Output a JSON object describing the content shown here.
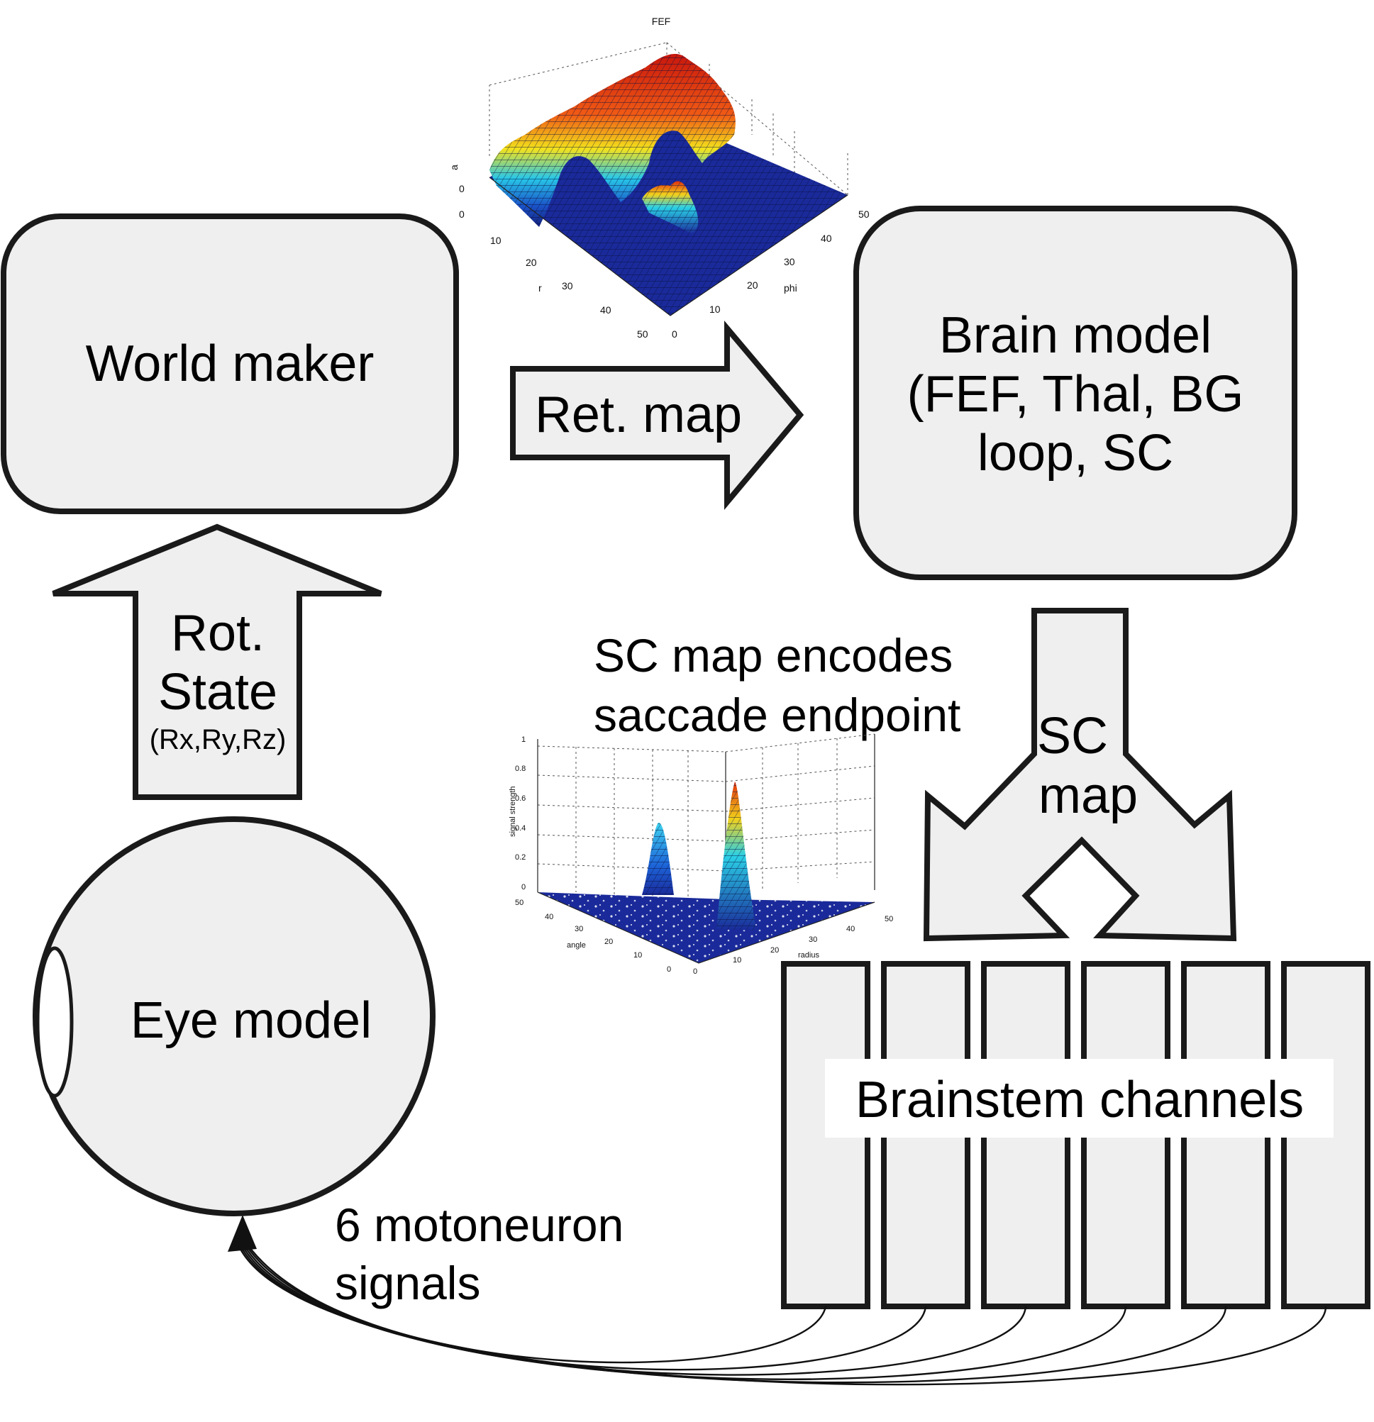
{
  "nodes": {
    "world_maker": "World maker",
    "brain_model": [
      "Brain model",
      "(FEF, Thal, BG",
      "loop, SC"
    ],
    "eye_model": "Eye model",
    "brainstem": "Brainstem channels"
  },
  "arrows": {
    "ret_map": "Ret. map",
    "rot_state": [
      "Rot.",
      "State"
    ],
    "rot_state_sub": "(Rx,Ry,Rz)",
    "sc_map": [
      "SC",
      "map"
    ]
  },
  "annotations": {
    "sc_encodes": [
      "SC map encodes",
      "saccade endpoint"
    ],
    "motoneuron": [
      "6 motoneuron",
      "signals"
    ]
  },
  "fef_plot": {
    "title": "FEF",
    "z_label": "a",
    "z_ticks": [
      "0",
      "0"
    ],
    "r_label": "r",
    "r_ticks": [
      "10",
      "20",
      "30",
      "40",
      "50"
    ],
    "phi_label": "phi",
    "phi_ticks": [
      "0",
      "10",
      "20",
      "30",
      "40",
      "50"
    ]
  },
  "sc_plot": {
    "z_label": "signal strength",
    "z_ticks": [
      "1",
      "0.8",
      "0.6",
      "0.4",
      "0.2",
      "0"
    ],
    "angle_label": "angle",
    "angle_ticks": [
      "50",
      "40",
      "30",
      "20",
      "10",
      "0"
    ],
    "radius_label": "radius",
    "radius_ticks": [
      "0",
      "10",
      "20",
      "30",
      "40",
      "50"
    ]
  },
  "brainstem_channel_count": 6,
  "colors": {
    "box_fill": "#efefef",
    "stroke": "#1a1a1a",
    "surface_low": "#1a2a9a",
    "surface_high": "#d81e0e"
  }
}
